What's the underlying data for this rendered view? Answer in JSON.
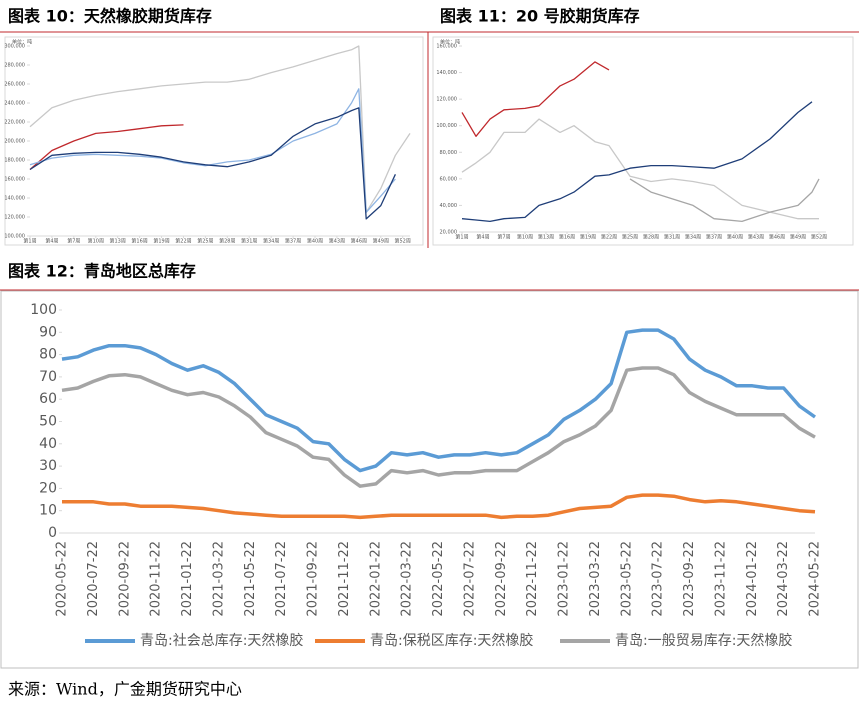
{
  "chart_data": [
    {
      "type": "line",
      "title": "图表 10：天然橡胶期货库存",
      "y_unit": "单位：吨",
      "x": [
        1,
        4,
        7,
        10,
        13,
        16,
        19,
        22,
        25,
        28,
        31,
        34,
        37,
        40,
        43,
        45,
        46,
        47,
        49,
        51,
        53
      ],
      "xlim": [
        1,
        53
      ],
      "xticks": [
        {
          "value": 1,
          "label": "第1周"
        },
        {
          "value": 4,
          "label": "第4周"
        },
        {
          "value": 7,
          "label": "第7周"
        },
        {
          "value": 10,
          "label": "第10周"
        },
        {
          "value": 13,
          "label": "第13周"
        },
        {
          "value": 16,
          "label": "第16周"
        },
        {
          "value": 19,
          "label": "第19周"
        },
        {
          "value": 22,
          "label": "第22周"
        },
        {
          "value": 25,
          "label": "第25周"
        },
        {
          "value": 28,
          "label": "第28周"
        },
        {
          "value": 31,
          "label": "第31周"
        },
        {
          "value": 34,
          "label": "第34周"
        },
        {
          "value": 37,
          "label": "第37周"
        },
        {
          "value": 40,
          "label": "第40周"
        },
        {
          "value": 43,
          "label": "第43周"
        },
        {
          "value": 46,
          "label": "第46周"
        },
        {
          "value": 49,
          "label": "第49周"
        },
        {
          "value": 52,
          "label": "第52周"
        }
      ],
      "ylim": [
        100000,
        300000
      ],
      "yticks": [
        {
          "value": 100000,
          "label": "100,000"
        },
        {
          "value": 120000,
          "label": "120,000"
        },
        {
          "value": 140000,
          "label": "140,000"
        },
        {
          "value": 160000,
          "label": "160,000"
        },
        {
          "value": 180000,
          "label": "180,000"
        },
        {
          "value": 200000,
          "label": "200,000"
        },
        {
          "value": 220000,
          "label": "220,000"
        },
        {
          "value": 240000,
          "label": "240,000"
        },
        {
          "value": 260000,
          "label": "260,000"
        },
        {
          "value": 280000,
          "label": "280,000"
        },
        {
          "value": 300000,
          "label": "300,000"
        }
      ],
      "series": [
        {
          "color": "#c8c8c8",
          "values": [
            215000,
            235000,
            243000,
            248000,
            252000,
            255000,
            258000,
            260000,
            262000,
            262000,
            265000,
            272000,
            278000,
            285000,
            292000,
            296000,
            300000,
            125000,
            150000,
            185000,
            208000
          ]
        },
        {
          "color": "#c0282c",
          "values": [
            170000,
            190000,
            200000,
            208000,
            210000,
            213000,
            216000,
            217000,
            null,
            null,
            null,
            null,
            null,
            null,
            null,
            null,
            null,
            null,
            null,
            null,
            null
          ]
        },
        {
          "color": "#8eb4e3",
          "values": [
            175000,
            182000,
            185000,
            186000,
            185000,
            184000,
            182000,
            177000,
            174000,
            178000,
            180000,
            186000,
            200000,
            208000,
            218000,
            240000,
            255000,
            125000,
            142000,
            160000,
            null
          ]
        },
        {
          "color": "#1f3e78",
          "values": [
            170000,
            185000,
            187000,
            188000,
            188000,
            186000,
            183000,
            178000,
            175000,
            173000,
            178000,
            185000,
            205000,
            218000,
            225000,
            232000,
            235000,
            118000,
            132000,
            165000,
            null
          ]
        }
      ]
    },
    {
      "type": "line",
      "title": "图表 11：20 号胶期货库存",
      "y_unit": "单位：吨",
      "x": [
        1,
        3,
        5,
        7,
        10,
        12,
        15,
        17,
        20,
        22,
        25,
        28,
        31,
        34,
        37,
        41,
        45,
        49,
        51,
        52
      ],
      "xlim": [
        1,
        53
      ],
      "xticks": [
        {
          "value": 1,
          "label": "第1周"
        },
        {
          "value": 4,
          "label": "第4周"
        },
        {
          "value": 7,
          "label": "第7周"
        },
        {
          "value": 10,
          "label": "第10周"
        },
        {
          "value": 13,
          "label": "第13周"
        },
        {
          "value": 16,
          "label": "第16周"
        },
        {
          "value": 19,
          "label": "第19周"
        },
        {
          "value": 22,
          "label": "第22周"
        },
        {
          "value": 25,
          "label": "第25周"
        },
        {
          "value": 28,
          "label": "第28周"
        },
        {
          "value": 31,
          "label": "第31周"
        },
        {
          "value": 34,
          "label": "第34周"
        },
        {
          "value": 37,
          "label": "第37周"
        },
        {
          "value": 40,
          "label": "第40周"
        },
        {
          "value": 43,
          "label": "第43周"
        },
        {
          "value": 46,
          "label": "第46周"
        },
        {
          "value": 49,
          "label": "第49周"
        },
        {
          "value": 52,
          "label": "第52周"
        }
      ],
      "ylim": [
        20000,
        160000
      ],
      "yticks": [
        {
          "value": 20000,
          "label": "20,000"
        },
        {
          "value": 40000,
          "label": "40,000"
        },
        {
          "value": 60000,
          "label": "60,000"
        },
        {
          "value": 80000,
          "label": "80,000"
        },
        {
          "value": 100000,
          "label": "100,000"
        },
        {
          "value": 120000,
          "label": "120,000"
        },
        {
          "value": 140000,
          "label": "140,000"
        },
        {
          "value": 160000,
          "label": "160,000"
        }
      ],
      "series": [
        {
          "color": "#c8c8c8",
          "values": [
            65000,
            72000,
            80000,
            95000,
            95000,
            105000,
            95000,
            100000,
            88000,
            85000,
            62000,
            58000,
            60000,
            58000,
            55000,
            40000,
            35000,
            30000,
            30000,
            30000
          ]
        },
        {
          "color": "#a6a6a6",
          "values": [
            null,
            null,
            null,
            null,
            null,
            null,
            null,
            null,
            null,
            null,
            60000,
            50000,
            45000,
            40000,
            30000,
            28000,
            35000,
            40000,
            50000,
            60000
          ]
        },
        {
          "color": "#c0282c",
          "values": [
            110000,
            92000,
            105000,
            112000,
            113000,
            115000,
            130000,
            135000,
            148000,
            142000,
            null,
            null,
            null,
            null,
            null,
            null,
            null,
            null,
            null,
            null
          ]
        },
        {
          "color": "#1f3e78",
          "values": [
            30000,
            29000,
            28000,
            30000,
            31000,
            40000,
            45000,
            50000,
            62000,
            63000,
            68000,
            70000,
            70000,
            69000,
            68000,
            75000,
            90000,
            110000,
            118000,
            null
          ]
        }
      ]
    },
    {
      "type": "line",
      "title": "图表 12：青岛地区总库存",
      "categories": [
        "2020-05-22",
        null,
        "2020-07-22",
        null,
        "2020-09-22",
        null,
        "2020-11-22",
        null,
        "2021-01-22",
        null,
        "2021-03-22",
        null,
        "2021-05-22",
        null,
        "2021-07-22",
        null,
        "2021-09-22",
        null,
        "2021-11-22",
        null,
        "2022-01-22",
        null,
        "2022-03-22",
        null,
        "2022-05-22",
        null,
        "2022-07-22",
        null,
        "2022-09-22",
        null,
        "2022-11-22",
        null,
        "2023-01-22",
        null,
        "2023-03-22",
        null,
        "2023-05-22",
        null,
        "2023-07-22",
        null,
        "2023-09-22",
        null,
        "2023-11-22",
        null,
        "2024-01-22",
        null,
        "2024-03-22",
        null,
        "2024-05-22"
      ],
      "ylim": [
        0,
        100
      ],
      "yticks": [
        0,
        10,
        20,
        30,
        40,
        50,
        60,
        70,
        80,
        90,
        100
      ],
      "series": [
        {
          "name": "青岛:社会总库存:天然橡胶",
          "color": "#5b9bd5",
          "values": [
            78,
            79,
            82,
            84,
            84,
            83,
            80,
            76,
            73,
            75,
            72,
            67,
            60,
            53,
            50,
            47,
            41,
            40,
            33,
            28,
            30,
            36,
            35,
            36,
            34,
            35,
            35,
            36,
            35,
            36,
            40,
            44,
            51,
            55,
            60,
            67,
            90,
            91,
            91,
            87,
            78,
            73,
            70,
            66,
            66,
            65,
            65,
            57,
            52
          ]
        },
        {
          "name": "青岛:保税区库存:天然橡胶",
          "color": "#ed7d31",
          "values": [
            14,
            14,
            14,
            13,
            13,
            12,
            12,
            12,
            11.5,
            11,
            10,
            9,
            8.5,
            8,
            7.5,
            7.5,
            7.5,
            7.5,
            7.5,
            7,
            7.5,
            8,
            8,
            8,
            8,
            8,
            8,
            8,
            7,
            7.5,
            7.5,
            8,
            9.5,
            11,
            11.5,
            12,
            16,
            17,
            17,
            16.5,
            15,
            14,
            14.5,
            14,
            13,
            12,
            11,
            10,
            9.5
          ]
        },
        {
          "name": "青岛:一般贸易库存:天然橡胶",
          "color": "#a5a5a5",
          "values": [
            64,
            65,
            68,
            70.5,
            71,
            70,
            67,
            64,
            62,
            63,
            61,
            57,
            52,
            45,
            42,
            39,
            34,
            33,
            26,
            21,
            22,
            28,
            27,
            28,
            26,
            27,
            27,
            28,
            28,
            28,
            32,
            36,
            41,
            44,
            48,
            55,
            73,
            74,
            74,
            71,
            63,
            59,
            56,
            53,
            53,
            53,
            53,
            47,
            43
          ]
        }
      ]
    }
  ],
  "source": "来源：Wind，广金期货研究中心"
}
